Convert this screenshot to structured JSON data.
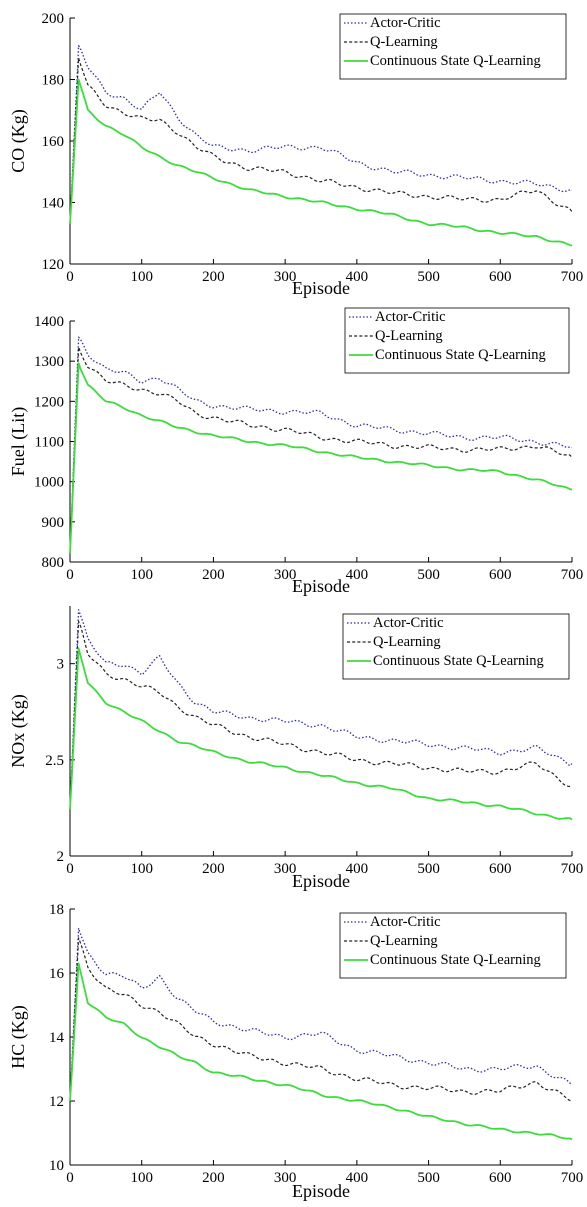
{
  "colors": {
    "actor_critic": "#2b2bb8",
    "q_learning": "#222222",
    "continuous": "#3ddc3d"
  },
  "legend_position": "top-right",
  "chart_data": [
    {
      "type": "line",
      "ylabel": "CO (Kg)",
      "xlabel": "Episode",
      "xlim": [
        0,
        700
      ],
      "ylim": [
        120,
        200
      ],
      "xticks": [
        "0",
        "100",
        "200",
        "300",
        "400",
        "500",
        "600",
        "700"
      ],
      "yticks": [
        "120",
        "140",
        "160",
        "180",
        "200"
      ],
      "series": [
        {
          "name": "Actor-Critic",
          "x": [
            0,
            12,
            25,
            50,
            75,
            100,
            125,
            150,
            175,
            200,
            250,
            300,
            350,
            400,
            450,
            500,
            550,
            600,
            650,
            700
          ],
          "values": [
            133,
            191,
            184,
            176,
            174,
            170,
            176,
            168,
            162,
            158,
            157,
            158,
            158,
            153,
            150,
            149,
            148,
            147,
            146,
            144
          ]
        },
        {
          "name": "Q-Learning",
          "x": [
            0,
            12,
            25,
            50,
            75,
            100,
            125,
            150,
            175,
            200,
            250,
            300,
            350,
            400,
            450,
            500,
            550,
            600,
            650,
            700
          ],
          "values": [
            133,
            187,
            178,
            172,
            169,
            167,
            167,
            163,
            158,
            155,
            151,
            150,
            147,
            145,
            143,
            142,
            141,
            141,
            144,
            137
          ]
        },
        {
          "name": "Continuous State Q-Learning",
          "x": [
            0,
            12,
            25,
            50,
            75,
            100,
            125,
            150,
            175,
            200,
            250,
            300,
            350,
            400,
            450,
            500,
            550,
            600,
            650,
            700
          ],
          "values": [
            133,
            180,
            170,
            165,
            162,
            158,
            155,
            152,
            150,
            148,
            144,
            142,
            140,
            138,
            136,
            133,
            132,
            130,
            129,
            126
          ]
        }
      ]
    },
    {
      "type": "line",
      "ylabel": "Fuel (Lit)",
      "xlabel": "Episode",
      "xlim": [
        0,
        700
      ],
      "ylim": [
        800,
        1400
      ],
      "xticks": [
        "0",
        "100",
        "200",
        "300",
        "400",
        "500",
        "600",
        "700"
      ],
      "yticks": [
        "800",
        "900",
        "1000",
        "1100",
        "1200",
        "1300",
        "1400"
      ],
      "series": [
        {
          "name": "Actor-Critic",
          "x": [
            0,
            12,
            25,
            50,
            75,
            100,
            125,
            150,
            175,
            200,
            250,
            300,
            350,
            400,
            450,
            500,
            550,
            600,
            650,
            700
          ],
          "values": [
            820,
            1360,
            1320,
            1280,
            1270,
            1250,
            1260,
            1230,
            1200,
            1190,
            1180,
            1175,
            1170,
            1140,
            1130,
            1120,
            1110,
            1110,
            1100,
            1085
          ]
        },
        {
          "name": "Q-Learning",
          "x": [
            0,
            12,
            25,
            50,
            75,
            100,
            125,
            150,
            175,
            200,
            250,
            300,
            350,
            400,
            450,
            500,
            550,
            600,
            650,
            700
          ],
          "values": [
            820,
            1335,
            1290,
            1250,
            1240,
            1230,
            1220,
            1200,
            1170,
            1160,
            1140,
            1130,
            1110,
            1100,
            1090,
            1085,
            1080,
            1080,
            1090,
            1060
          ]
        },
        {
          "name": "Continuous State Q-Learning",
          "x": [
            0,
            12,
            25,
            50,
            75,
            100,
            125,
            150,
            175,
            200,
            250,
            300,
            350,
            400,
            450,
            500,
            550,
            600,
            650,
            700
          ],
          "values": [
            820,
            1295,
            1240,
            1200,
            1185,
            1165,
            1150,
            1135,
            1125,
            1115,
            1100,
            1090,
            1075,
            1060,
            1050,
            1040,
            1030,
            1025,
            1005,
            980
          ]
        }
      ]
    },
    {
      "type": "line",
      "ylabel": "NOx (Kg)",
      "xlabel": "Episode",
      "xlim": [
        0,
        700
      ],
      "ylim": [
        2,
        3.3
      ],
      "xticks": [
        "0",
        "100",
        "200",
        "300",
        "400",
        "500",
        "600",
        "700"
      ],
      "yticks": [
        "2",
        "2.5",
        "3"
      ],
      "ytick_values": [
        2,
        2.5,
        3
      ],
      "series": [
        {
          "name": "Actor-Critic",
          "x": [
            0,
            12,
            25,
            50,
            75,
            100,
            125,
            150,
            175,
            200,
            250,
            300,
            350,
            400,
            450,
            500,
            550,
            600,
            650,
            700
          ],
          "values": [
            2.24,
            3.28,
            3.12,
            3.0,
            3.0,
            2.95,
            3.03,
            2.9,
            2.8,
            2.75,
            2.72,
            2.7,
            2.68,
            2.62,
            2.6,
            2.58,
            2.56,
            2.54,
            2.56,
            2.48
          ]
        },
        {
          "name": "Q-Learning",
          "x": [
            0,
            12,
            25,
            50,
            75,
            100,
            125,
            150,
            175,
            200,
            250,
            300,
            350,
            400,
            450,
            500,
            550,
            600,
            650,
            700
          ],
          "values": [
            2.24,
            3.22,
            3.05,
            2.95,
            2.92,
            2.88,
            2.85,
            2.78,
            2.72,
            2.68,
            2.62,
            2.58,
            2.54,
            2.5,
            2.48,
            2.46,
            2.44,
            2.44,
            2.48,
            2.36
          ]
        },
        {
          "name": "Continuous State Q-Learning",
          "x": [
            0,
            12,
            25,
            50,
            75,
            100,
            125,
            150,
            175,
            200,
            250,
            300,
            350,
            400,
            450,
            500,
            550,
            600,
            650,
            700
          ],
          "values": [
            2.24,
            3.08,
            2.9,
            2.8,
            2.75,
            2.7,
            2.65,
            2.6,
            2.57,
            2.54,
            2.49,
            2.46,
            2.42,
            2.38,
            2.35,
            2.3,
            2.28,
            2.26,
            2.22,
            2.19
          ]
        }
      ]
    },
    {
      "type": "line",
      "ylabel": "HC (Kg)",
      "xlabel": "Episode",
      "xlim": [
        0,
        700
      ],
      "ylim": [
        10,
        18
      ],
      "xticks": [
        "0",
        "100",
        "200",
        "300",
        "400",
        "500",
        "600",
        "700"
      ],
      "yticks": [
        "10",
        "12",
        "14",
        "16",
        "18"
      ],
      "series": [
        {
          "name": "Actor-Critic",
          "x": [
            0,
            12,
            25,
            50,
            75,
            100,
            125,
            150,
            175,
            200,
            250,
            300,
            350,
            400,
            450,
            500,
            550,
            600,
            650,
            700
          ],
          "values": [
            12,
            17.4,
            16.6,
            16.0,
            15.9,
            15.5,
            15.9,
            15.2,
            14.8,
            14.5,
            14.2,
            14.0,
            14.1,
            13.6,
            13.4,
            13.2,
            13.0,
            13.0,
            13.1,
            12.5
          ]
        },
        {
          "name": "Q-Learning",
          "x": [
            0,
            12,
            25,
            50,
            75,
            100,
            125,
            150,
            175,
            200,
            250,
            300,
            350,
            400,
            450,
            500,
            550,
            600,
            650,
            700
          ],
          "values": [
            12,
            17.1,
            16.2,
            15.5,
            15.3,
            15.0,
            14.8,
            14.4,
            14.0,
            13.8,
            13.4,
            13.2,
            13.0,
            12.7,
            12.5,
            12.4,
            12.3,
            12.3,
            12.6,
            12.0
          ]
        },
        {
          "name": "Continuous State Q-Learning",
          "x": [
            0,
            12,
            25,
            50,
            75,
            100,
            125,
            150,
            175,
            200,
            250,
            300,
            350,
            400,
            450,
            500,
            550,
            600,
            650,
            700
          ],
          "values": [
            12,
            16.3,
            15.1,
            14.6,
            14.4,
            14.0,
            13.7,
            13.4,
            13.2,
            12.9,
            12.7,
            12.5,
            12.2,
            12.0,
            11.8,
            11.5,
            11.3,
            11.1,
            11.0,
            10.8
          ]
        }
      ]
    }
  ]
}
